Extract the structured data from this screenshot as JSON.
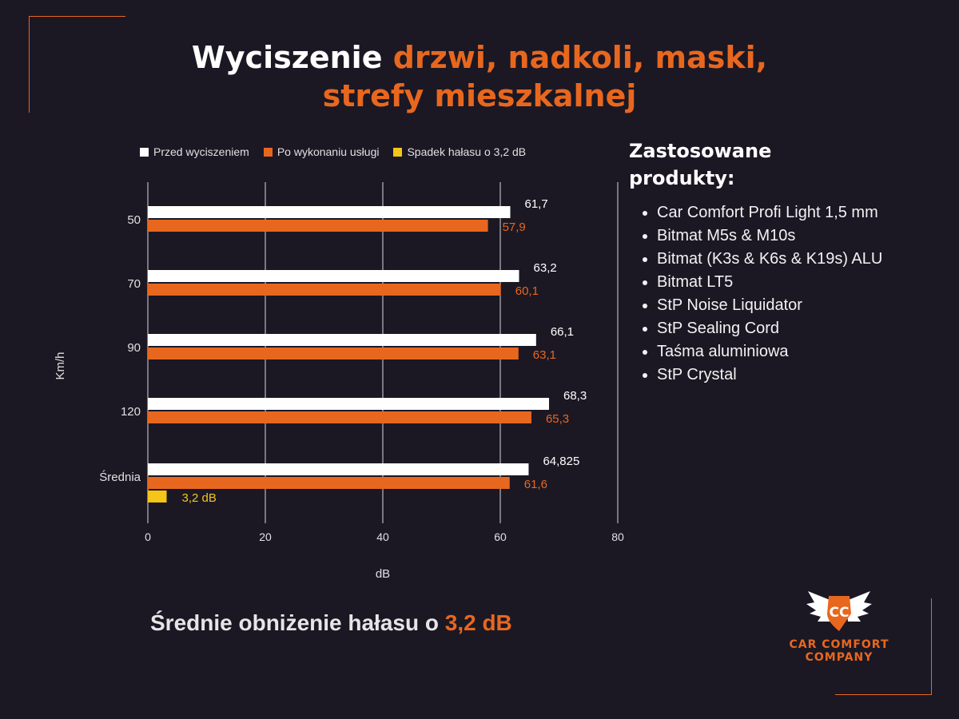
{
  "title": {
    "part1": "Wyciszenie ",
    "part2": "drzwi, nadkoli, maski,",
    "line2": "strefy mieszkalnej"
  },
  "colors": {
    "background": "#1b1824",
    "accent": "#e8671f",
    "before": "#ffffff",
    "after": "#e8671f",
    "drop": "#f5c518"
  },
  "chart_data": {
    "type": "bar",
    "orientation": "horizontal",
    "categories": [
      "50",
      "70",
      "90",
      "120",
      "Średnia"
    ],
    "series": [
      {
        "name": "Przed wyciszeniem",
        "values": [
          61.7,
          63.2,
          66.1,
          68.3,
          64.825
        ],
        "labels": [
          "61,7",
          "63,2",
          "66,1",
          "68,3",
          "64,825"
        ]
      },
      {
        "name": "Po wykonaniu usługi",
        "values": [
          57.9,
          60.1,
          63.1,
          65.3,
          61.6
        ],
        "labels": [
          "57,9",
          "60,1",
          "63,1",
          "65,3",
          "61,6"
        ]
      },
      {
        "name": "Spadek hałasu o 3,2 dB",
        "values": [
          null,
          null,
          null,
          null,
          3.2
        ],
        "labels": [
          "",
          "",
          "",
          "",
          "3,2 dB"
        ]
      }
    ],
    "xlabel": "dB",
    "ylabel": "Km/h",
    "xlim": [
      0,
      80
    ],
    "xticks": [
      "0",
      "20",
      "40",
      "60",
      "80"
    ],
    "grid": true,
    "legend": "top"
  },
  "products": {
    "heading": "Zastosowane produkty:",
    "items": [
      "Car Comfort Profi Light 1,5 mm",
      "Bitmat M5s & M10s",
      "Bitmat (K3s & K6s & K19s) ALU",
      "Bitmat LT5",
      "StP Noise Liquidator",
      "StP Sealing Cord",
      "Taśma aluminiowa",
      "StP Crystal"
    ]
  },
  "summary": {
    "text": "Średnie obniżenie hałasu o ",
    "value": "3,2 dB"
  },
  "logo": {
    "initials": "CC",
    "line1": "CAR COMFORT",
    "line2": "COMPANY"
  }
}
